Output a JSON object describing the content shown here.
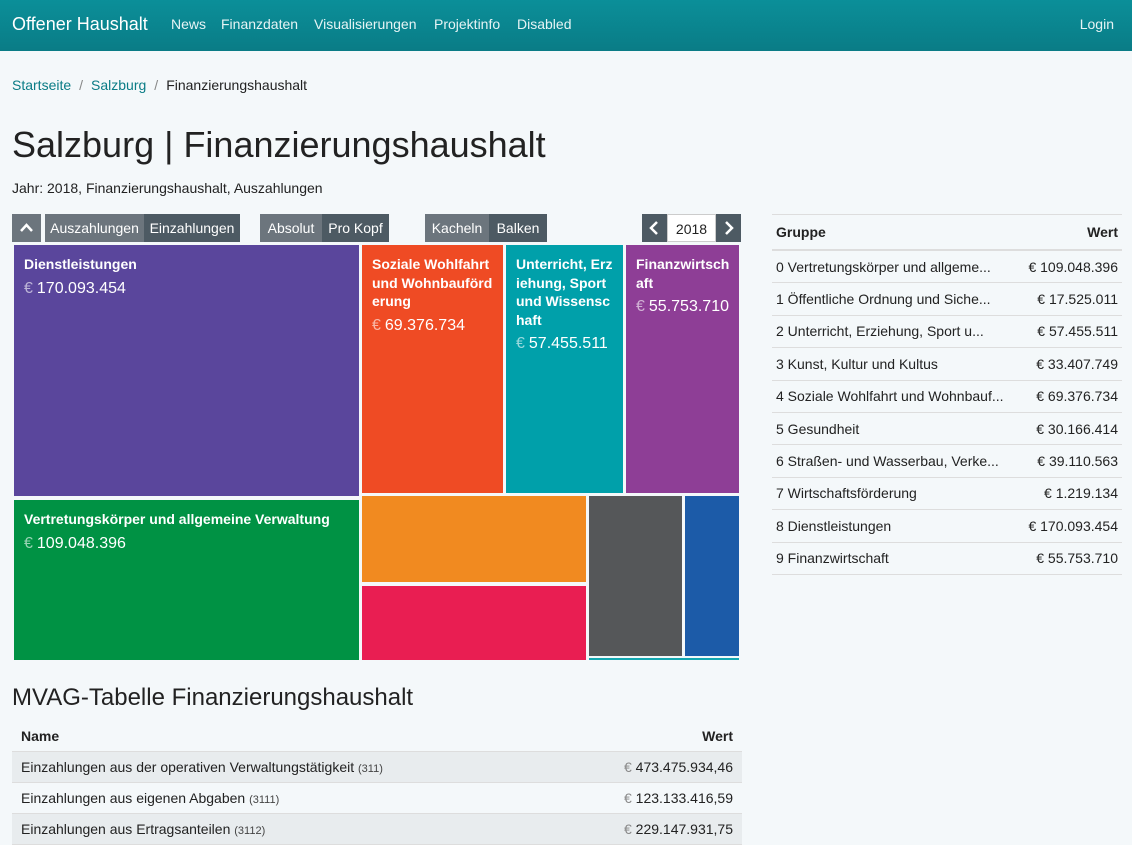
{
  "nav": {
    "brand": "Offener Haushalt",
    "items": [
      "News",
      "Finanzdaten",
      "Visualisierungen",
      "Projektinfo",
      "Disabled"
    ],
    "login": "Login"
  },
  "breadcrumb": {
    "items": [
      "Startseite",
      "Salzburg",
      "Finanzierungshaushalt"
    ]
  },
  "page": {
    "title": "Salzburg | Finanzierungshaushalt",
    "subtitle": "Jahr: 2018, Finanzierungshaushalt, Auszahlungen"
  },
  "toolbar": {
    "collapse_icon": "chevron-up-icon",
    "flow": [
      "Auszahlungen",
      "Einzahlungen"
    ],
    "mode": [
      "Absolut",
      "Pro Kopf"
    ],
    "view": [
      "Kacheln",
      "Balken"
    ],
    "prev_icon": "chevron-left-icon",
    "next_icon": "chevron-right-icon",
    "year": "2018"
  },
  "currency": "€",
  "treemap": {
    "tiles": [
      {
        "name": "Dienstleistungen",
        "value": "170.093.454",
        "color": "#5a469c"
      },
      {
        "name": "Soziale Wohlfahrt und Wohnbauförderung",
        "value": "69.376.734",
        "color": "#ef4b24"
      },
      {
        "name": "Unterricht, Erziehung, Sport und Wissenschaft",
        "value": "57.455.511",
        "color": "#00a0aa"
      },
      {
        "name": "Finanzwirtschaft",
        "value": "55.753.710",
        "color": "#8e3e96"
      },
      {
        "name": "Vertretungskörper und allgemeine Verwaltung",
        "value": "109.048.396",
        "color": "#009244"
      },
      {
        "name": "",
        "value": "",
        "color": "#f18a20"
      },
      {
        "name": "",
        "value": "",
        "color": "#e91e52"
      },
      {
        "name": "",
        "value": "",
        "color": "#555759"
      },
      {
        "name": "",
        "value": "",
        "color": "#1c5ba8"
      },
      {
        "name": "",
        "value": "",
        "color": "#13a7b0"
      }
    ]
  },
  "group_table": {
    "headers": [
      "Gruppe",
      "Wert"
    ],
    "rows": [
      {
        "name": "0 Vertretungskörper und allgeme...",
        "value": "109.048.396"
      },
      {
        "name": "1 Öffentliche Ordnung und Siche...",
        "value": "17.525.011"
      },
      {
        "name": "2 Unterricht, Erziehung, Sport u...",
        "value": "57.455.511"
      },
      {
        "name": "3 Kunst, Kultur und Kultus",
        "value": "33.407.749"
      },
      {
        "name": "4 Soziale Wohlfahrt und Wohnbauf...",
        "value": "69.376.734"
      },
      {
        "name": "5 Gesundheit",
        "value": "30.166.414"
      },
      {
        "name": "6 Straßen- und Wasserbau, Verke...",
        "value": "39.110.563"
      },
      {
        "name": "7 Wirtschaftsförderung",
        "value": "1.219.134"
      },
      {
        "name": "8 Dienstleistungen",
        "value": "170.093.454"
      },
      {
        "name": "9 Finanzwirtschaft",
        "value": "55.753.710"
      }
    ]
  },
  "mvag": {
    "title": "MVAG-Tabelle Finanzierungshaushalt",
    "headers": [
      "Name",
      "Wert"
    ],
    "rows": [
      {
        "name": "Einzahlungen aus der operativen Verwaltungstätigkeit",
        "code": "(311)",
        "value": "473.475.934,46"
      },
      {
        "name": "Einzahlungen aus eigenen Abgaben",
        "code": "(3111)",
        "value": "123.133.416,59"
      },
      {
        "name": "Einzahlungen aus Ertragsanteilen",
        "code": "(3112)",
        "value": "229.147.931,75"
      }
    ]
  }
}
